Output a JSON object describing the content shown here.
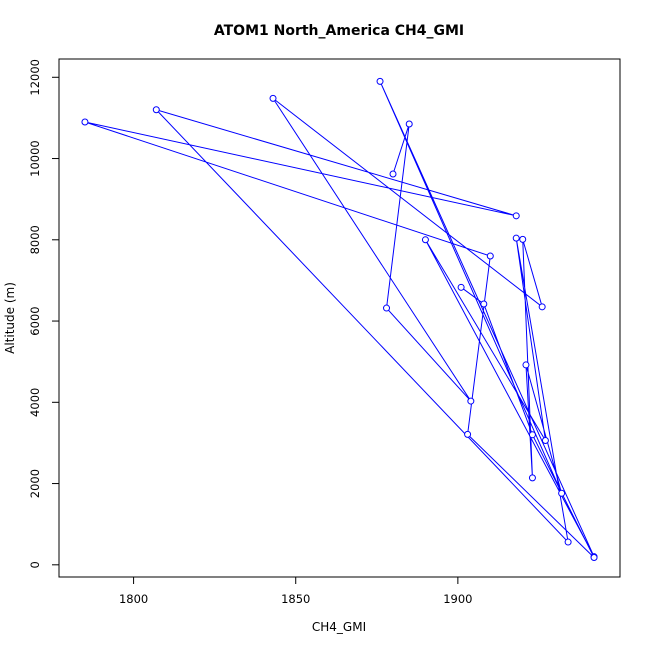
{
  "chart_data": {
    "type": "line",
    "title": "ATOM1 North_America CH4_GMI",
    "xlabel": "CH4_GMI",
    "ylabel": "Altitude (m)",
    "xlim": [
      1777,
      1950
    ],
    "ylim": [
      -300,
      12450
    ],
    "xticks": [
      1800,
      1850,
      1900
    ],
    "yticks": [
      0,
      2000,
      4000,
      6000,
      8000,
      10000,
      12000
    ],
    "grid": false,
    "line_color": "#0000ff",
    "series": [
      {
        "x": [
          1880,
          1885,
          1878,
          1904,
          1843,
          1926,
          1920,
          1923,
          1921,
          1932,
          1876,
          1942,
          1890,
          1927,
          1918,
          1934,
          1807,
          1918,
          1785,
          1910,
          1903,
          1942,
          1923,
          1908,
          1901
        ],
        "y": [
          9620,
          10850,
          6320,
          4030,
          11480,
          6350,
          8010,
          2140,
          4920,
          1760,
          11900,
          200,
          8000,
          3060,
          8040,
          560,
          11200,
          8590,
          10900,
          7600,
          3210,
          180,
          3200,
          6420,
          6830
        ]
      }
    ]
  }
}
